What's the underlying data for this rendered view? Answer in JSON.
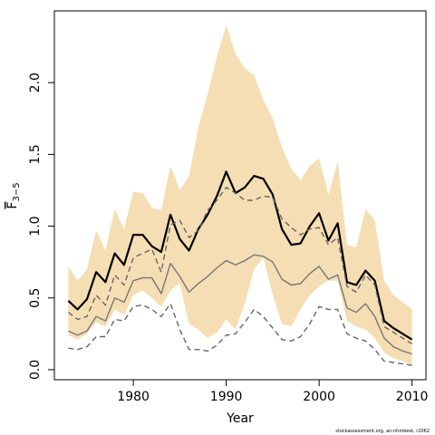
{
  "chart_data": {
    "type": "line",
    "title": "",
    "xlabel": "Year",
    "ylabel_main": "F",
    "ylabel_sub": "3−5",
    "x_range": [
      1973,
      2010
    ],
    "xlim": [
      1971.5,
      2011.5
    ],
    "ylim": [
      -0.07,
      2.5
    ],
    "x_ticks": [
      1980,
      1990,
      2000,
      2010
    ],
    "y_ticks": [
      0.0,
      0.5,
      1.0,
      1.5,
      2.0
    ],
    "y_tick_labels": [
      "0.0",
      "0.5",
      "1.0",
      "1.5",
      "2.0"
    ],
    "x_tick_labels": [
      "1980",
      "1990",
      "2000",
      "2010"
    ],
    "years": [
      1973,
      1974,
      1975,
      1976,
      1977,
      1978,
      1979,
      1980,
      1981,
      1982,
      1983,
      1984,
      1985,
      1986,
      1987,
      1988,
      1989,
      1990,
      1991,
      1992,
      1993,
      1994,
      1995,
      1996,
      1997,
      1998,
      1999,
      2000,
      2001,
      2002,
      2003,
      2004,
      2005,
      2006,
      2007,
      2008,
      2009,
      2010
    ],
    "band": {
      "fill_color": "#f5deb3",
      "upper": [
        0.72,
        0.62,
        0.7,
        0.97,
        0.83,
        1.12,
        0.98,
        1.24,
        1.23,
        1.13,
        1.11,
        1.42,
        1.25,
        1.35,
        1.69,
        1.92,
        2.18,
        2.4,
        2.2,
        2.1,
        2.05,
        1.88,
        1.75,
        1.55,
        1.4,
        1.32,
        1.42,
        1.47,
        1.22,
        1.45,
        0.87,
        0.85,
        1.12,
        1.04,
        0.62,
        0.52,
        0.47,
        0.42
      ],
      "lower": [
        0.24,
        0.21,
        0.25,
        0.33,
        0.3,
        0.42,
        0.38,
        0.52,
        0.55,
        0.5,
        0.44,
        0.55,
        0.6,
        0.32,
        0.28,
        0.22,
        0.26,
        0.35,
        0.28,
        0.46,
        0.7,
        0.78,
        0.52,
        0.32,
        0.3,
        0.42,
        0.52,
        0.58,
        0.62,
        0.62,
        0.34,
        0.3,
        0.28,
        0.22,
        0.12,
        0.08,
        0.06,
        0.03
      ]
    },
    "series": [
      {
        "color": "#000000",
        "width": 2.2,
        "dash": "",
        "values": [
          0.48,
          0.42,
          0.49,
          0.68,
          0.61,
          0.81,
          0.73,
          0.94,
          0.94,
          0.86,
          0.82,
          1.08,
          0.91,
          0.83,
          0.98,
          1.08,
          1.21,
          1.38,
          1.23,
          1.27,
          1.35,
          1.33,
          1.22,
          0.98,
          0.87,
          0.88,
          1.0,
          1.09,
          0.9,
          1.02,
          0.61,
          0.59,
          0.69,
          0.62,
          0.34,
          0.29,
          0.25,
          0.21
        ]
      },
      {
        "color": "#666666",
        "width": 1.4,
        "dash": "6,4",
        "values": [
          0.4,
          0.35,
          0.37,
          0.52,
          0.45,
          0.66,
          0.59,
          0.78,
          0.81,
          0.84,
          0.68,
          1.01,
          1.04,
          0.92,
          0.97,
          1.11,
          1.18,
          1.27,
          1.23,
          1.18,
          1.18,
          1.21,
          1.2,
          1.05,
          0.99,
          0.94,
          0.98,
          0.99,
          0.87,
          0.92,
          0.58,
          0.54,
          0.66,
          0.59,
          0.3,
          0.26,
          0.22,
          0.18
        ]
      },
      {
        "color": "#777777",
        "width": 1.4,
        "dash": "",
        "values": [
          0.27,
          0.24,
          0.27,
          0.37,
          0.34,
          0.5,
          0.47,
          0.62,
          0.64,
          0.64,
          0.53,
          0.74,
          0.65,
          0.54,
          0.6,
          0.65,
          0.71,
          0.76,
          0.73,
          0.76,
          0.8,
          0.79,
          0.75,
          0.63,
          0.59,
          0.6,
          0.67,
          0.72,
          0.63,
          0.66,
          0.43,
          0.4,
          0.46,
          0.37,
          0.22,
          0.16,
          0.13,
          0.11
        ]
      },
      {
        "color": "#666666",
        "width": 1.4,
        "dash": "6,4",
        "values": [
          0.15,
          0.14,
          0.16,
          0.23,
          0.23,
          0.35,
          0.34,
          0.44,
          0.45,
          0.42,
          0.37,
          0.46,
          0.28,
          0.14,
          0.14,
          0.13,
          0.17,
          0.24,
          0.25,
          0.33,
          0.42,
          0.37,
          0.29,
          0.21,
          0.2,
          0.23,
          0.32,
          0.44,
          0.42,
          0.42,
          0.25,
          0.22,
          0.2,
          0.14,
          0.06,
          0.05,
          0.04,
          0.03
        ]
      }
    ],
    "grid": false,
    "legend": "none"
  },
  "credit": "stockassessment.org, an-nhmbest, r2062"
}
